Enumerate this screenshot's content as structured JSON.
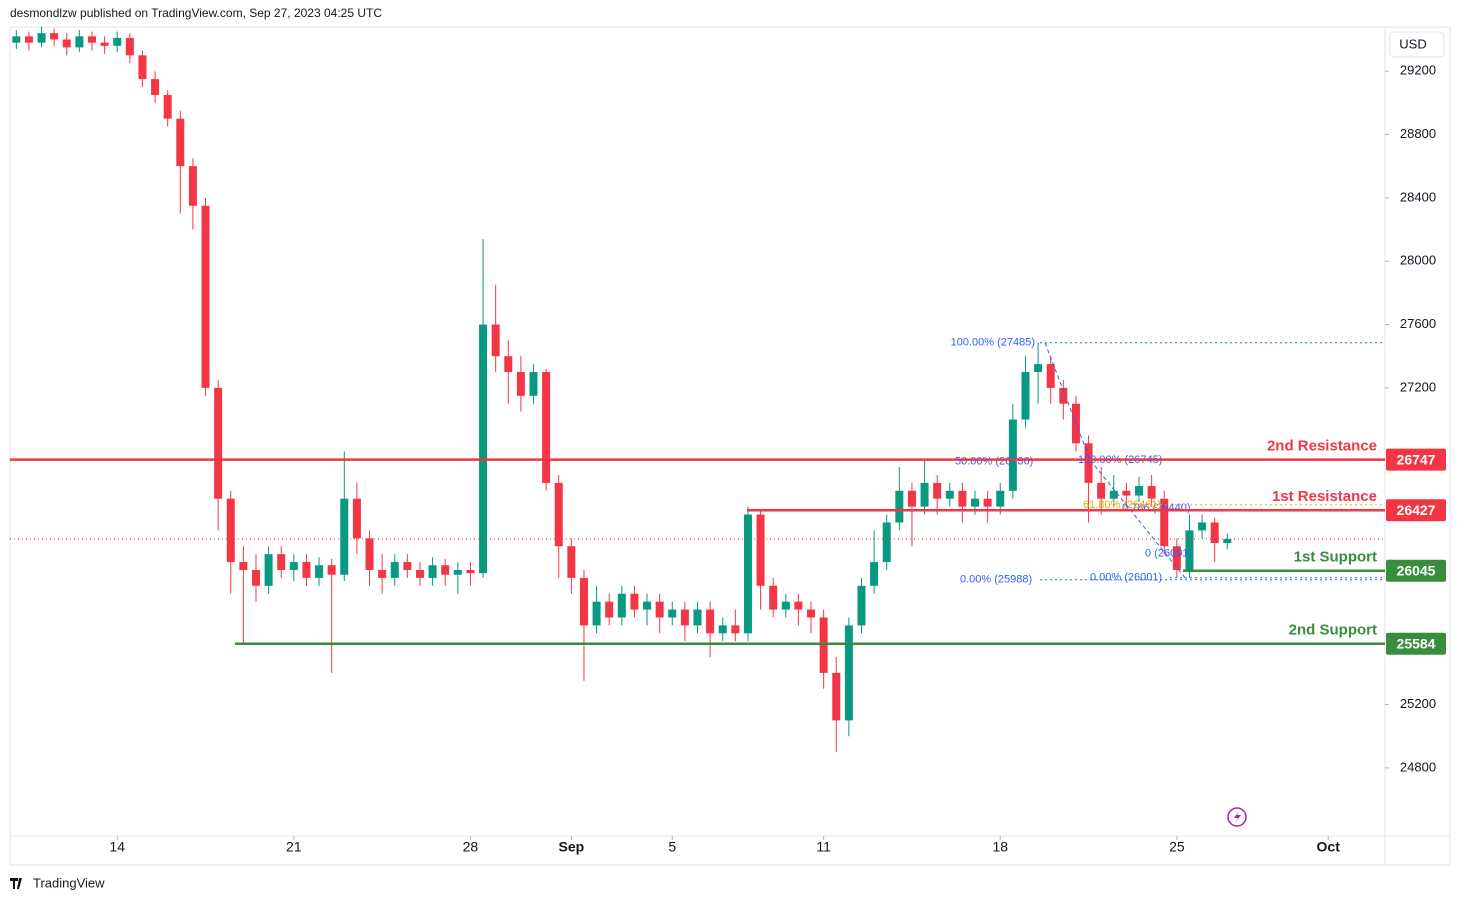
{
  "header": "desmondlzw published on TradingView.com, Sep 27, 2023 04:25 UTC",
  "footer": "TradingView",
  "chart_data": {
    "type": "candlestick",
    "currency": "USD",
    "up_color": "#089981",
    "down_color": "#f23645",
    "open": [
      29380,
      29420,
      29380,
      29440,
      29400,
      29350,
      29420,
      29380,
      29360,
      29410,
      29300,
      29150,
      29050,
      28900,
      28600,
      28350,
      27200,
      26500,
      26100,
      26050,
      25950,
      26150,
      26050,
      26100,
      26000,
      26080,
      26020,
      26500,
      26250,
      26050,
      26000,
      26100,
      26050,
      26000,
      26080,
      26020,
      26050,
      26030,
      27600,
      27400,
      27300,
      27150,
      27300,
      26600,
      26200,
      26000,
      25700,
      25850,
      25750,
      25900,
      25800,
      25850,
      25750,
      25800,
      25700,
      25800,
      25650,
      25700,
      25650,
      26400,
      25950,
      25800,
      25850,
      25800,
      25750,
      25400,
      25100,
      25700,
      25950,
      26100,
      26350,
      26550,
      26450,
      26600,
      26500,
      26550,
      26450,
      26500,
      26450,
      26550,
      27000,
      27300,
      27350,
      27200,
      27100,
      26850,
      26600,
      26500,
      26550,
      26520,
      26580,
      26500,
      26200,
      26050,
      26300,
      26350,
      26220
    ],
    "high": [
      29460,
      29450,
      29480,
      29470,
      29440,
      29460,
      29450,
      29420,
      29450,
      29440,
      29330,
      29200,
      29080,
      28950,
      28650,
      28400,
      27250,
      26550,
      26200,
      26150,
      26200,
      26200,
      26150,
      26150,
      26130,
      26120,
      26800,
      26600,
      26300,
      26150,
      26150,
      26150,
      26100,
      26130,
      26120,
      26100,
      26100,
      28140,
      27850,
      27500,
      27400,
      27350,
      27320,
      26650,
      26250,
      26050,
      25950,
      25900,
      25950,
      25950,
      25900,
      25900,
      25850,
      25850,
      25850,
      25850,
      25750,
      25800,
      26450,
      26420,
      26000,
      25900,
      25900,
      25850,
      25800,
      25500,
      25750,
      26000,
      26300,
      26400,
      26700,
      26600,
      26750,
      26650,
      26600,
      26600,
      26550,
      26550,
      26600,
      27100,
      27400,
      27485,
      27400,
      27250,
      27150,
      26900,
      26700,
      26650,
      26600,
      26640,
      26650,
      26550,
      26250,
      26400,
      26400,
      26380,
      26280
    ],
    "low": [
      29340,
      29330,
      29350,
      29360,
      29300,
      29320,
      29330,
      29310,
      29320,
      29250,
      29100,
      29000,
      28850,
      28300,
      28200,
      27150,
      26300,
      25900,
      25584,
      25850,
      25900,
      26000,
      25980,
      25950,
      25950,
      25400,
      25980,
      26150,
      25950,
      25900,
      25950,
      26000,
      25950,
      25950,
      25950,
      25900,
      25950,
      26000,
      27300,
      27100,
      27050,
      27100,
      26550,
      26000,
      25900,
      25350,
      25650,
      25700,
      25700,
      25750,
      25700,
      25650,
      25700,
      25600,
      25650,
      25500,
      25600,
      25600,
      25600,
      25800,
      25750,
      25750,
      25700,
      25650,
      25300,
      24900,
      25000,
      25650,
      25900,
      26050,
      26300,
      26200,
      26400,
      26400,
      26450,
      26350,
      26400,
      26350,
      26400,
      26500,
      26950,
      27100,
      27100,
      27000,
      26800,
      26350,
      26400,
      26450,
      26450,
      26480,
      26450,
      26150,
      26001,
      26000,
      26250,
      26100,
      26180
    ],
    "close": [
      29420,
      29380,
      29440,
      29400,
      29350,
      29420,
      29380,
      29360,
      29410,
      29300,
      29150,
      29050,
      28900,
      28600,
      28350,
      27200,
      26500,
      26100,
      26050,
      25950,
      26150,
      26050,
      26100,
      26000,
      26080,
      26020,
      26500,
      26250,
      26050,
      26000,
      26100,
      26050,
      26000,
      26080,
      26020,
      26050,
      26030,
      27600,
      27400,
      27300,
      27150,
      27300,
      26600,
      26200,
      26000,
      25700,
      25850,
      25750,
      25900,
      25800,
      25850,
      25750,
      25800,
      25700,
      25800,
      25650,
      25700,
      25650,
      26400,
      25950,
      25800,
      25850,
      25800,
      25750,
      25400,
      25100,
      25700,
      25950,
      26100,
      26350,
      26550,
      26450,
      26600,
      26500,
      26550,
      26450,
      26500,
      26450,
      26550,
      27000,
      27300,
      27350,
      27200,
      27100,
      26850,
      26600,
      26500,
      26550,
      26520,
      26580,
      26500,
      26200,
      26050,
      26300,
      26350,
      26220,
      26246
    ],
    "xlim": [
      -0.5,
      108.5
    ],
    "xticks": [
      {
        "value": 8,
        "label": "14"
      },
      {
        "value": 22,
        "label": "21"
      },
      {
        "value": 36,
        "label": "28"
      },
      {
        "value": 44,
        "label": "Sep"
      },
      {
        "value": 52,
        "label": "5"
      },
      {
        "value": 64,
        "label": "11"
      },
      {
        "value": 78,
        "label": "18"
      },
      {
        "value": 92,
        "label": "25"
      },
      {
        "value": 104,
        "label": "Oct"
      }
    ],
    "ylim": [
      24370,
      29460
    ],
    "yticks": [
      24800,
      25200,
      27200,
      27600,
      28000,
      28400,
      28800,
      29200
    ],
    "levels": [
      {
        "name": "2nd Resistance",
        "value": 26747,
        "color": "#f23645"
      },
      {
        "name": "1st Resistance",
        "value": 26427,
        "color": "#f23645"
      },
      {
        "name": "1st Support",
        "value": 26045,
        "color": "#388e3c"
      },
      {
        "name": "2nd Support",
        "value": 25584,
        "color": "#388e3c"
      }
    ],
    "fib_labels": [
      {
        "label": "100.00% (27485)",
        "value": 27485,
        "color": "#2962ff"
      },
      {
        "label": "50.00% (26736)",
        "value": 26736,
        "color": "#2962ff"
      },
      {
        "label": "100.00% (26745)",
        "value": 26745,
        "color": "#2962ff"
      },
      {
        "label": "0.786 (26440)",
        "value": 26440,
        "color": "#2962ff"
      },
      {
        "label": "61.80% (26461)",
        "value": 26461,
        "color": "#f7a600"
      },
      {
        "label": "0 (26001)",
        "value": 26001,
        "color": "#2962ff"
      },
      {
        "label": "0.00% (25988)",
        "value": 25988,
        "color": "#2962ff"
      },
      {
        "label": "0.00% (26001)",
        "value": 26001,
        "color": "#2962ff"
      }
    ]
  }
}
